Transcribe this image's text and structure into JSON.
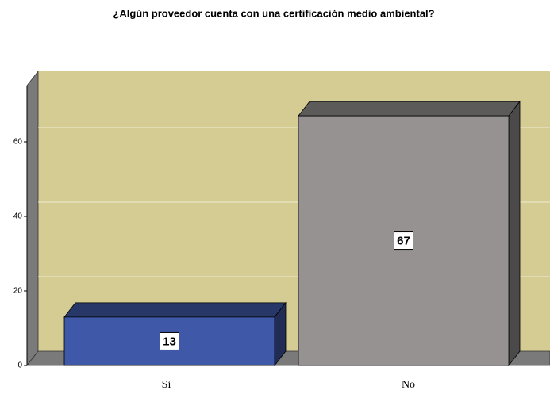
{
  "chart_data": {
    "type": "bar3d",
    "title": "¿Algún proveedor cuenta con una certificación medio ambiental?",
    "categories": [
      "Si",
      "No"
    ],
    "values": [
      13,
      67
    ],
    "value_labels": [
      "13",
      "67"
    ],
    "colors": [
      "#3f58a8",
      "#969291"
    ],
    "ylim": [
      0,
      75
    ],
    "yticks": [
      0,
      20,
      40,
      60
    ],
    "grid": true
  }
}
